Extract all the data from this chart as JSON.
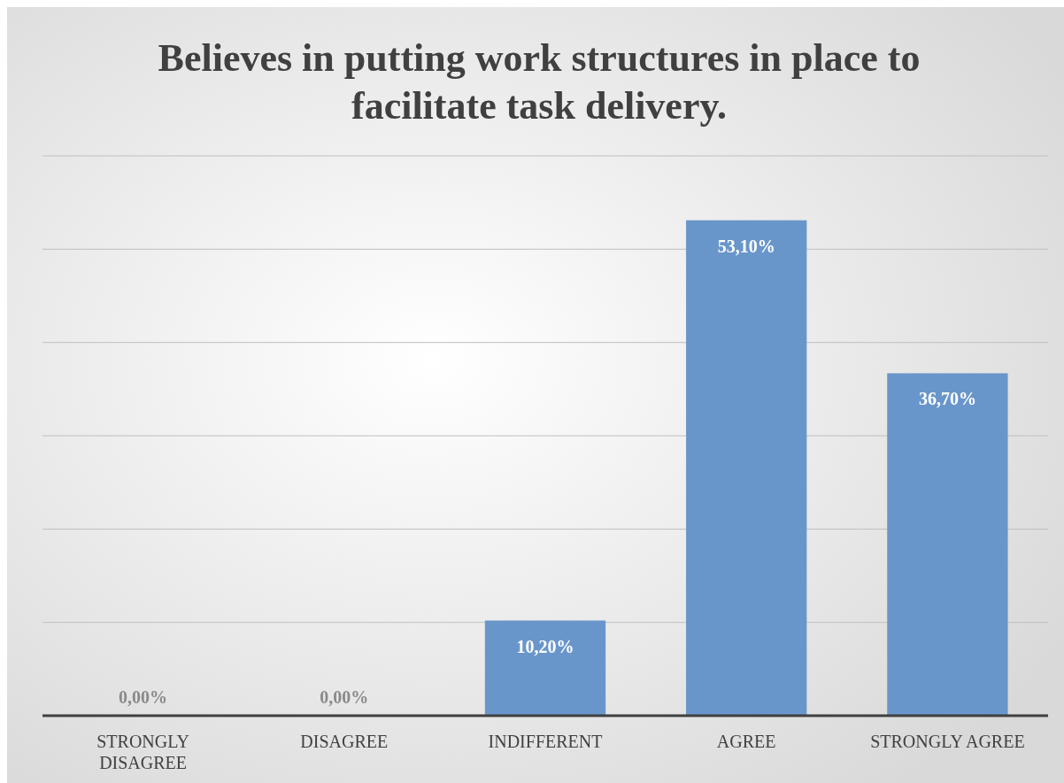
{
  "chart_data": {
    "type": "bar",
    "title": "Believes in putting work structures in place to facilitate task delivery.",
    "categories": [
      "STRONGLY DISAGREE",
      "DISAGREE",
      "INDIFFERENT",
      "AGREE",
      "STRONGLY AGREE"
    ],
    "values": [
      0,
      0,
      10.2,
      53.1,
      36.7
    ],
    "value_labels": [
      "0,00%",
      "0,00%",
      "10,20%",
      "53,10%",
      "36,70%"
    ],
    "color": "#6996ca",
    "ylim": [
      0,
      60
    ],
    "yticks": [
      {
        "value": 0,
        "label": null
      },
      {
        "value": 10,
        "label": null
      },
      {
        "value": 20,
        "label": null
      },
      {
        "value": 30,
        "label": null
      },
      {
        "value": 40,
        "label": null
      },
      {
        "value": 50,
        "label": null
      },
      {
        "value": 60,
        "label": null
      }
    ],
    "tick_labels": "x",
    "grid": "y"
  }
}
